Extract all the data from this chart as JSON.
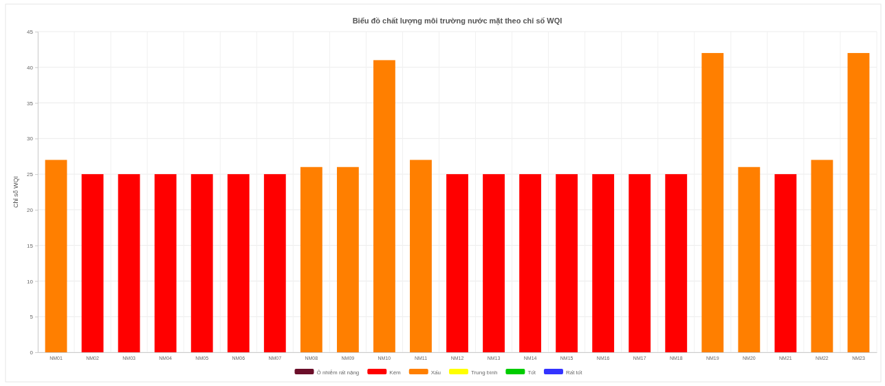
{
  "chart_data": {
    "type": "bar",
    "title": "Biểu đồ chất lượng môi trường nước mặt theo chỉ số WQI",
    "ylabel": "Chỉ số WQI",
    "categories": [
      "NM01",
      "NM02",
      "NM03",
      "NM04",
      "NM05",
      "NM06",
      "NM07",
      "NM08",
      "NM09",
      "NM10",
      "NM11",
      "NM12",
      "NM13",
      "NM14",
      "NM15",
      "NM16",
      "NM17",
      "NM18",
      "NM19",
      "NM20",
      "NM21",
      "NM22",
      "NM23"
    ],
    "stacked": true,
    "series": [
      {
        "name": "Ô nhiễm rất nặng",
        "color": "#6b0f2a",
        "values": [
          null,
          null,
          null,
          null,
          null,
          null,
          null,
          null,
          null,
          null,
          null,
          null,
          null,
          null,
          null,
          null,
          null,
          null,
          null,
          null,
          null,
          null,
          null
        ]
      },
      {
        "name": "Kém",
        "color": "#ff0000",
        "values": [
          null,
          25,
          25,
          25,
          25,
          25,
          25,
          null,
          null,
          null,
          null,
          25,
          25,
          25,
          25,
          25,
          25,
          25,
          null,
          null,
          25,
          null,
          null
        ]
      },
      {
        "name": "Xấu",
        "color": "#ff7f00",
        "values": [
          27,
          null,
          null,
          null,
          null,
          null,
          null,
          26,
          26,
          41,
          27,
          null,
          null,
          null,
          null,
          null,
          null,
          null,
          42,
          26,
          null,
          27,
          42
        ]
      },
      {
        "name": "Trung bình",
        "color": "#ffff00",
        "values": [
          null,
          null,
          null,
          null,
          null,
          null,
          null,
          null,
          null,
          null,
          null,
          null,
          null,
          null,
          null,
          null,
          null,
          null,
          null,
          null,
          null,
          null,
          null
        ]
      },
      {
        "name": "Tốt",
        "color": "#00cc00",
        "values": [
          null,
          null,
          null,
          null,
          null,
          null,
          null,
          null,
          null,
          null,
          null,
          null,
          null,
          null,
          null,
          null,
          null,
          null,
          null,
          null,
          null,
          null,
          null
        ]
      },
      {
        "name": "Rất tốt",
        "color": "#3333ff",
        "values": [
          null,
          null,
          null,
          null,
          null,
          null,
          null,
          null,
          null,
          null,
          null,
          null,
          null,
          null,
          null,
          null,
          null,
          null,
          null,
          null,
          null,
          null,
          null
        ]
      }
    ],
    "ylim": [
      0,
      45
    ],
    "yticks": [
      0,
      5,
      10,
      15,
      20,
      25,
      30,
      35,
      40,
      45
    ],
    "grid": true,
    "legend": "bottom"
  }
}
